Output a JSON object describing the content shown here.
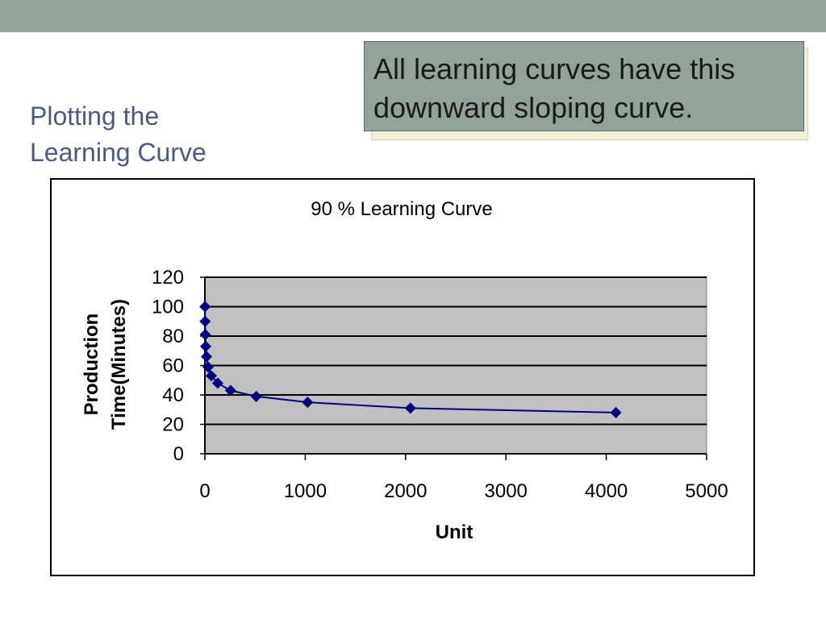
{
  "slide": {
    "title_line1": "Plotting the",
    "title_line2": "Learning Curve",
    "callout_line1": "All learning curves have this",
    "callout_line2": "downward sloping curve."
  },
  "colors": {
    "top_bar": "#94a39a",
    "title_text": "#4b5a82",
    "plot_area": "#c0c0c0",
    "series": "#000080"
  },
  "chart_data": {
    "type": "scatter",
    "title": "90 % Learning Curve",
    "xlabel": "Unit",
    "ylabel_line1": "Production",
    "ylabel_line2": "Time(Minutes)",
    "xlim": [
      0,
      5000
    ],
    "ylim": [
      0,
      120
    ],
    "xticks": [
      0,
      1000,
      2000,
      3000,
      4000,
      5000
    ],
    "yticks": [
      0,
      20,
      40,
      60,
      80,
      100,
      120
    ],
    "grid": true,
    "legend": "none",
    "series": [
      {
        "marker": "diamond",
        "line": true,
        "points": [
          {
            "x": 1,
            "y": 100
          },
          {
            "x": 2,
            "y": 90
          },
          {
            "x": 4,
            "y": 81
          },
          {
            "x": 8,
            "y": 73
          },
          {
            "x": 16,
            "y": 66
          },
          {
            "x": 32,
            "y": 59
          },
          {
            "x": 64,
            "y": 53
          },
          {
            "x": 128,
            "y": 48
          },
          {
            "x": 256,
            "y": 43
          },
          {
            "x": 512,
            "y": 39
          },
          {
            "x": 1024,
            "y": 35
          },
          {
            "x": 2048,
            "y": 31
          },
          {
            "x": 4096,
            "y": 28
          }
        ]
      }
    ]
  }
}
